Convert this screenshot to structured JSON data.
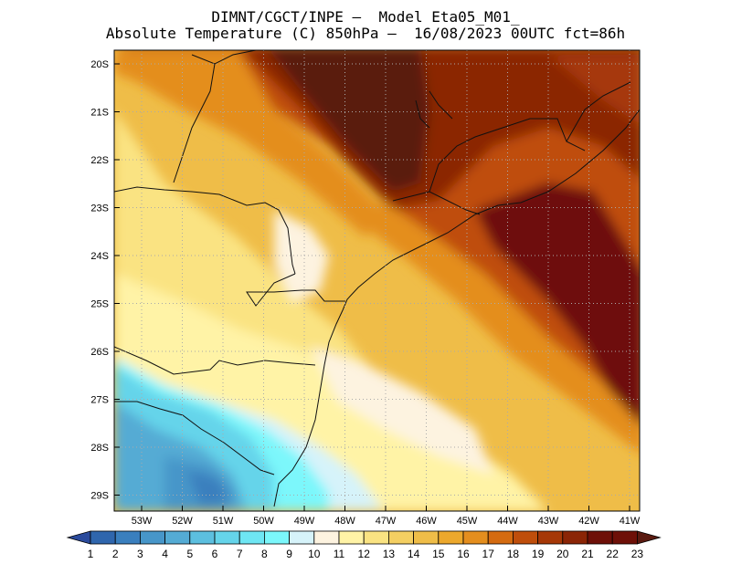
{
  "header": {
    "line1": "DIMNT/CGCT/INPE —  Model Eta05_M01_",
    "line2": "Absolute Temperature (C) 850hPa —  16/08/2023 00UTC fct=86h"
  },
  "map": {
    "lat_labels": [
      "20S",
      "21S",
      "22S",
      "23S",
      "24S",
      "25S",
      "26S",
      "27S",
      "28S",
      "29S"
    ],
    "lon_labels": [
      "53W",
      "52W",
      "51W",
      "50W",
      "49W",
      "48W",
      "47W",
      "46W",
      "45W",
      "44W",
      "43W",
      "42W",
      "41W"
    ],
    "grid": "dotted"
  },
  "colorbar": {
    "labels": [
      "1",
      "2",
      "3",
      "4",
      "5",
      "6",
      "7",
      "8",
      "9",
      "10",
      "11",
      "12",
      "13",
      "14",
      "15",
      "16",
      "17",
      "18",
      "19",
      "20",
      "21",
      "22",
      "23"
    ],
    "colors": [
      "#2a4a9c",
      "#2f66ad",
      "#3a7fbe",
      "#4796c9",
      "#54abd4",
      "#5cbfdf",
      "#65d4ea",
      "#6ee6f3",
      "#7bf7fb",
      "#d6f3fa",
      "#fdf3e0",
      "#fff3a6",
      "#fae382",
      "#f4cf62",
      "#efbd48",
      "#eca82c",
      "#e48e1e",
      "#d46b10",
      "#bf4e0b",
      "#a63807",
      "#8b2506",
      "#6e1008",
      "#5a1a10"
    ]
  }
}
